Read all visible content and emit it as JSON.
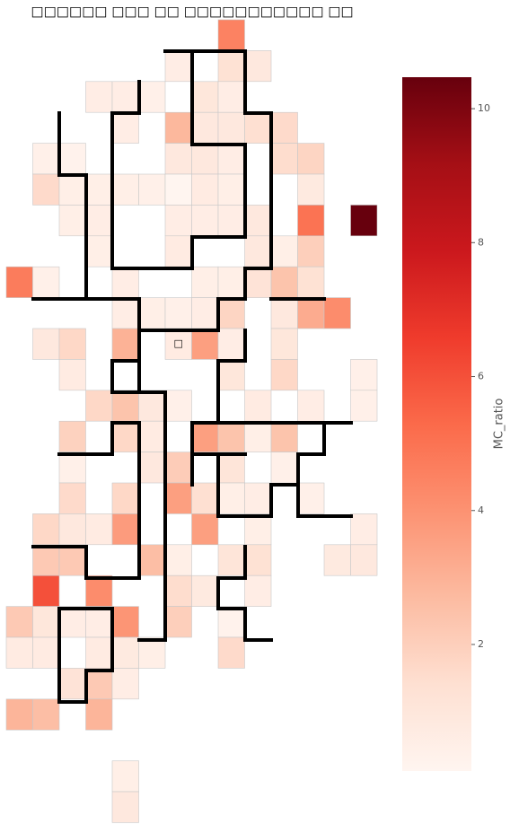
{
  "chart_data": {
    "type": "heatmap",
    "title": "□□□□□□ □□□ □□ □□□□□□□□□□□ □□",
    "colorbar_label": "MC_ratio",
    "clim": [
      0.11,
      10.47
    ],
    "cticks": [
      2,
      4,
      6,
      8,
      10
    ],
    "colorscale": [
      "#fff5f0",
      "#fee0d2",
      "#fcbba1",
      "#fc9272",
      "#fb6a4a",
      "#ef3b2c",
      "#cb181d",
      "#a50f15",
      "#67000d"
    ],
    "annotation": {
      "text": "□",
      "cell": [
        10,
        6
      ]
    },
    "values": [
      [
        null,
        null,
        null,
        null,
        null,
        null,
        null,
        null,
        4.5,
        null,
        null,
        null,
        null,
        null
      ],
      [
        null,
        null,
        null,
        null,
        null,
        null,
        0.6,
        null,
        1.3,
        0.9,
        null,
        null,
        null,
        null
      ],
      [
        null,
        null,
        null,
        0.6,
        0.6,
        0.4,
        null,
        1.0,
        0.6,
        null,
        null,
        null,
        null,
        null
      ],
      [
        null,
        null,
        null,
        null,
        0.6,
        null,
        2.8,
        0.9,
        0.9,
        1.4,
        1.6,
        null,
        null,
        null
      ],
      [
        null,
        0.4,
        0.3,
        null,
        null,
        null,
        0.9,
        0.9,
        0.6,
        null,
        1.5,
        1.8,
        null,
        null
      ],
      [
        null,
        1.6,
        0.5,
        0.5,
        0.5,
        0.4,
        0.11,
        0.7,
        0.5,
        null,
        null,
        0.8,
        null,
        null
      ],
      [
        null,
        null,
        0.5,
        0.6,
        null,
        null,
        0.6,
        0.6,
        0.6,
        0.9,
        null,
        5.0,
        null,
        10.47
      ],
      [
        null,
        null,
        null,
        0.5,
        null,
        null,
        0.7,
        null,
        null,
        0.9,
        0.5,
        2.0,
        null,
        null
      ],
      [
        4.7,
        0.4,
        null,
        null,
        0.6,
        null,
        null,
        0.5,
        0.5,
        1.2,
        2.4,
        1.3,
        null,
        null
      ],
      [
        null,
        null,
        null,
        null,
        0.6,
        0.5,
        0.4,
        0.6,
        1.8,
        null,
        0.9,
        3.2,
        4.2,
        null
      ],
      [
        null,
        0.9,
        1.7,
        null,
        3.0,
        null,
        0.7,
        3.6,
        0.6,
        null,
        1.0,
        null,
        null,
        null
      ],
      [
        null,
        null,
        0.7,
        null,
        null,
        null,
        null,
        null,
        1.0,
        null,
        1.7,
        null,
        null,
        0.4
      ],
      [
        null,
        null,
        null,
        1.7,
        2.4,
        0.9,
        0.4,
        null,
        null,
        0.7,
        null,
        0.6,
        null,
        0.4
      ],
      [
        null,
        null,
        1.9,
        null,
        1.7,
        0.7,
        null,
        3.6,
        2.4,
        0.5,
        2.4,
        null,
        null,
        null
      ],
      [
        null,
        null,
        0.4,
        null,
        null,
        0.9,
        2.1,
        null,
        1.1,
        null,
        0.4,
        null,
        null,
        null
      ],
      [
        null,
        null,
        1.6,
        null,
        1.7,
        null,
        3.6,
        1.4,
        0.5,
        0.6,
        null,
        0.4,
        null,
        null
      ],
      [
        null,
        1.7,
        0.9,
        0.7,
        3.7,
        null,
        null,
        3.6,
        null,
        0.5,
        null,
        null,
        null,
        0.6
      ],
      [
        null,
        2.2,
        2.2,
        null,
        null,
        2.6,
        0.5,
        null,
        1.1,
        1.3,
        null,
        null,
        0.8,
        0.9
      ],
      [
        null,
        6.0,
        null,
        4.2,
        null,
        null,
        1.5,
        0.8,
        null,
        0.6,
        null,
        null,
        null,
        null
      ],
      [
        2.2,
        1.0,
        0.6,
        0.6,
        3.9,
        null,
        2.0,
        null,
        0.3,
        null,
        null,
        null,
        null,
        null
      ],
      [
        0.7,
        0.7,
        null,
        0.7,
        0.8,
        0.5,
        null,
        null,
        1.6,
        null,
        null,
        null,
        null,
        null
      ],
      [
        null,
        null,
        1.2,
        2.2,
        0.6,
        null,
        null,
        null,
        null,
        null,
        null,
        null,
        null,
        null
      ],
      [
        2.9,
        2.6,
        null,
        2.9,
        null,
        null,
        null,
        null,
        null,
        null,
        null,
        null,
        null,
        null
      ],
      [
        null,
        null,
        null,
        null,
        null,
        null,
        null,
        null,
        null,
        null,
        null,
        null,
        null,
        null
      ],
      [
        null,
        null,
        null,
        null,
        0.5,
        null,
        null,
        null,
        null,
        null,
        null,
        null,
        null,
        null
      ],
      [
        null,
        null,
        null,
        null,
        0.9,
        null,
        null,
        null,
        null,
        null,
        null,
        null,
        null,
        null
      ]
    ]
  }
}
